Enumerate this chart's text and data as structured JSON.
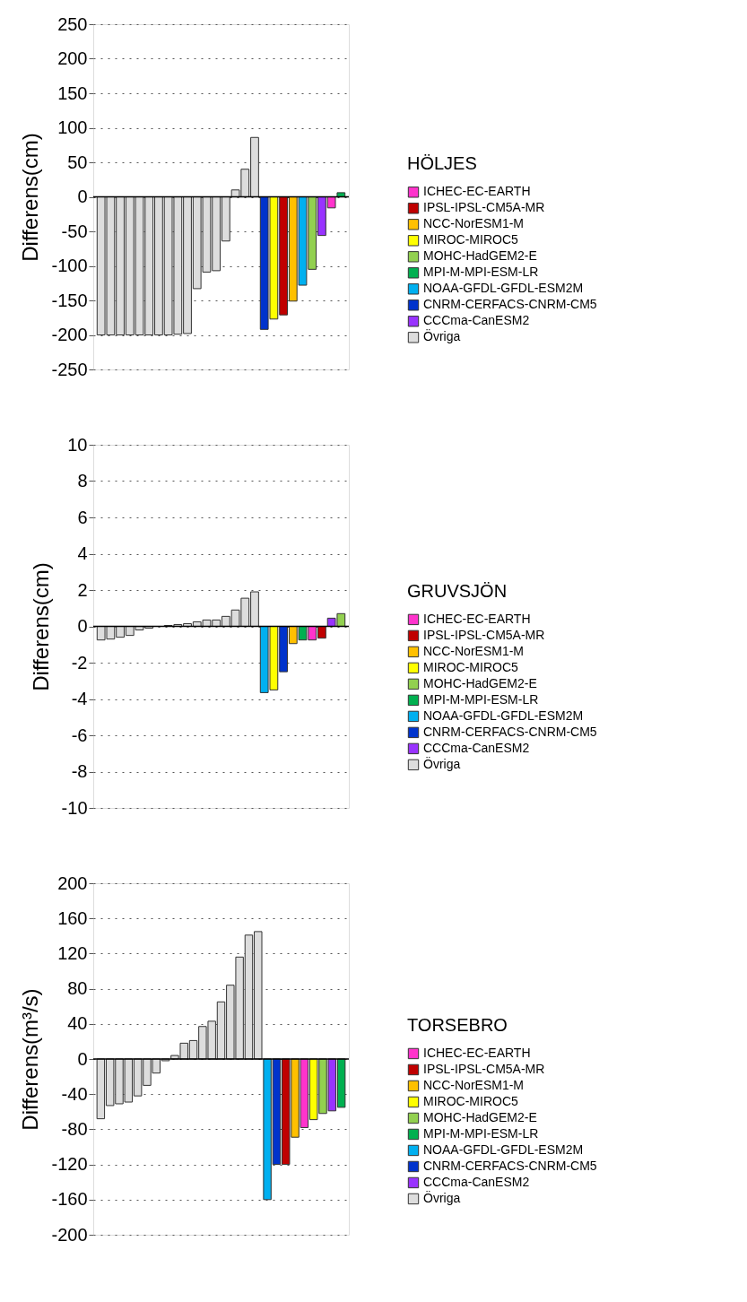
{
  "chart_data": [
    {
      "type": "bar",
      "ylabel": "Differens(cm)",
      "legend_title": "HÖLJES",
      "legend": "right",
      "grid": "y",
      "tick_labels": "y",
      "ylim": [
        -250,
        250
      ],
      "yticks": [
        -250,
        -200,
        -150,
        -100,
        -50,
        0,
        50,
        100,
        150,
        200,
        250
      ],
      "ref_lines": [
        {
          "axis": "y",
          "value": 0,
          "color": "#000000"
        }
      ],
      "categories": [
        null,
        null,
        null,
        null,
        null,
        null,
        null,
        null,
        null,
        null,
        null,
        null,
        null,
        null,
        null,
        null,
        null,
        null,
        null,
        null,
        null,
        null,
        null,
        null,
        null,
        null
      ],
      "series": [
        {
          "name": "ICHEC-EC-EARTH",
          "color": "#ff33cc",
          "values": [
            null,
            null,
            null,
            null,
            null,
            null,
            null,
            null,
            null,
            null,
            null,
            null,
            null,
            null,
            null,
            null,
            null,
            null,
            null,
            null,
            null,
            null,
            null,
            null,
            -16,
            null
          ]
        },
        {
          "name": "IPSL-IPSL-CM5A-MR",
          "color": "#c00000",
          "values": [
            null,
            null,
            null,
            null,
            null,
            null,
            null,
            null,
            null,
            null,
            null,
            null,
            null,
            null,
            null,
            null,
            null,
            null,
            null,
            -171,
            null,
            null,
            null,
            null,
            null,
            null
          ]
        },
        {
          "name": "NCC-NorESM1-M",
          "color": "#ffc000",
          "values": [
            null,
            null,
            null,
            null,
            null,
            null,
            null,
            null,
            null,
            null,
            null,
            null,
            null,
            null,
            null,
            null,
            null,
            null,
            null,
            null,
            -151,
            null,
            null,
            null,
            null,
            null
          ]
        },
        {
          "name": "MIROC-MIROC5",
          "color": "#ffff00",
          "values": [
            null,
            null,
            null,
            null,
            null,
            null,
            null,
            null,
            null,
            null,
            null,
            null,
            null,
            null,
            null,
            null,
            null,
            null,
            -177,
            null,
            null,
            null,
            null,
            null,
            null,
            null
          ]
        },
        {
          "name": "MOHC-HadGEM2-E",
          "color": "#92d050",
          "values": [
            null,
            null,
            null,
            null,
            null,
            null,
            null,
            null,
            null,
            null,
            null,
            null,
            null,
            null,
            null,
            null,
            null,
            null,
            null,
            null,
            null,
            null,
            -105,
            null,
            null,
            null
          ]
        },
        {
          "name": "MPI-M-MPI-ESM-LR",
          "color": "#00b050",
          "values": [
            null,
            null,
            null,
            null,
            null,
            null,
            null,
            null,
            null,
            null,
            null,
            null,
            null,
            null,
            null,
            null,
            null,
            null,
            null,
            null,
            null,
            null,
            null,
            null,
            null,
            6
          ]
        },
        {
          "name": "NOAA-GFDL-GFDL-ESM2M",
          "color": "#00b0f0",
          "values": [
            null,
            null,
            null,
            null,
            null,
            null,
            null,
            null,
            null,
            null,
            null,
            null,
            null,
            null,
            null,
            null,
            null,
            null,
            null,
            null,
            null,
            -128,
            null,
            null,
            null,
            null
          ]
        },
        {
          "name": "CNRM-CERFACS-CNRM-CM5",
          "color": "#0033cc",
          "values": [
            null,
            null,
            null,
            null,
            null,
            null,
            null,
            null,
            null,
            null,
            null,
            null,
            null,
            null,
            null,
            null,
            null,
            -192,
            null,
            null,
            null,
            null,
            null,
            null,
            null,
            null
          ]
        },
        {
          "name": "CCCma-CanESM2",
          "color": "#9933ff",
          "values": [
            null,
            null,
            null,
            null,
            null,
            null,
            null,
            null,
            null,
            null,
            null,
            null,
            null,
            null,
            null,
            null,
            null,
            null,
            null,
            null,
            null,
            null,
            null,
            -56,
            null,
            null
          ]
        },
        {
          "name": "Övriga",
          "color": "#dddddd",
          "values": [
            -200,
            -200,
            -200,
            -200,
            -200,
            -200,
            -200,
            -200,
            -199,
            -198,
            -133,
            -109,
            -107,
            -64,
            10,
            40,
            86,
            null,
            null,
            null,
            null,
            null,
            null,
            null,
            null,
            null
          ]
        }
      ]
    },
    {
      "type": "bar",
      "ylabel": "Differens(cm)",
      "legend_title": "GRUVSJÖN",
      "legend": "right",
      "grid": "y",
      "tick_labels": "y",
      "ylim": [
        -10,
        10
      ],
      "yticks": [
        -10,
        -8,
        -6,
        -4,
        -2,
        0,
        2,
        4,
        6,
        8,
        10
      ],
      "ref_lines": [
        {
          "axis": "y",
          "value": 0,
          "color": "#000000"
        }
      ],
      "categories": [
        null,
        null,
        null,
        null,
        null,
        null,
        null,
        null,
        null,
        null,
        null,
        null,
        null,
        null,
        null,
        null,
        null,
        null,
        null,
        null,
        null,
        null,
        null,
        null,
        null,
        null
      ],
      "series": [
        {
          "name": "ICHEC-EC-EARTH",
          "color": "#ff33cc",
          "values": [
            null,
            null,
            null,
            null,
            null,
            null,
            null,
            null,
            null,
            null,
            null,
            null,
            null,
            null,
            null,
            null,
            null,
            null,
            null,
            null,
            null,
            null,
            -0.75,
            null,
            null,
            null
          ]
        },
        {
          "name": "IPSL-IPSL-CM5A-MR",
          "color": "#c00000",
          "values": [
            null,
            null,
            null,
            null,
            null,
            null,
            null,
            null,
            null,
            null,
            null,
            null,
            null,
            null,
            null,
            null,
            null,
            null,
            null,
            null,
            null,
            null,
            null,
            -0.65,
            null,
            null
          ]
        },
        {
          "name": "NCC-NorESM1-M",
          "color": "#ffc000",
          "values": [
            null,
            null,
            null,
            null,
            null,
            null,
            null,
            null,
            null,
            null,
            null,
            null,
            null,
            null,
            null,
            null,
            null,
            null,
            null,
            null,
            -0.95,
            null,
            null,
            null,
            null,
            null
          ]
        },
        {
          "name": "MIROC-MIROC5",
          "color": "#ffff00",
          "values": [
            null,
            null,
            null,
            null,
            null,
            null,
            null,
            null,
            null,
            null,
            null,
            null,
            null,
            null,
            null,
            null,
            null,
            null,
            -3.5,
            null,
            null,
            null,
            null,
            null,
            null,
            null
          ]
        },
        {
          "name": "MOHC-HadGEM2-E",
          "color": "#92d050",
          "values": [
            null,
            null,
            null,
            null,
            null,
            null,
            null,
            null,
            null,
            null,
            null,
            null,
            null,
            null,
            null,
            null,
            null,
            null,
            null,
            null,
            null,
            null,
            null,
            null,
            null,
            0.7
          ]
        },
        {
          "name": "MPI-M-MPI-ESM-LR",
          "color": "#00b050",
          "values": [
            null,
            null,
            null,
            null,
            null,
            null,
            null,
            null,
            null,
            null,
            null,
            null,
            null,
            null,
            null,
            null,
            null,
            null,
            null,
            null,
            null,
            -0.75,
            null,
            null,
            null,
            null
          ]
        },
        {
          "name": "NOAA-GFDL-GFDL-ESM2M",
          "color": "#00b0f0",
          "values": [
            null,
            null,
            null,
            null,
            null,
            null,
            null,
            null,
            null,
            null,
            null,
            null,
            null,
            null,
            null,
            null,
            null,
            -3.65,
            null,
            null,
            null,
            null,
            null,
            null,
            null,
            null
          ]
        },
        {
          "name": "CNRM-CERFACS-CNRM-CM5",
          "color": "#0033cc",
          "values": [
            null,
            null,
            null,
            null,
            null,
            null,
            null,
            null,
            null,
            null,
            null,
            null,
            null,
            null,
            null,
            null,
            null,
            null,
            null,
            -2.5,
            null,
            null,
            null,
            null,
            null,
            null
          ]
        },
        {
          "name": "CCCma-CanESM2",
          "color": "#9933ff",
          "values": [
            null,
            null,
            null,
            null,
            null,
            null,
            null,
            null,
            null,
            null,
            null,
            null,
            null,
            null,
            null,
            null,
            null,
            null,
            null,
            null,
            null,
            null,
            null,
            null,
            0.45,
            null
          ]
        },
        {
          "name": "Övriga",
          "color": "#dddddd",
          "values": [
            -0.75,
            -0.7,
            -0.6,
            -0.5,
            -0.2,
            -0.1,
            0,
            0.05,
            0.1,
            0.15,
            0.25,
            0.35,
            0.35,
            0.55,
            0.9,
            1.55,
            1.9,
            null,
            null,
            null,
            null,
            null,
            null,
            null,
            null,
            null
          ]
        }
      ]
    },
    {
      "type": "bar",
      "ylabel": "Differens(m³/s)",
      "legend_title": "TORSEBRO",
      "legend": "right",
      "grid": "y",
      "tick_labels": "y",
      "ylim": [
        -200,
        200
      ],
      "yticks": [
        -200,
        -160,
        -120,
        -80,
        -40,
        0,
        40,
        80,
        120,
        160,
        200
      ],
      "ref_lines": [
        {
          "axis": "y",
          "value": 0,
          "color": "#000000"
        }
      ],
      "categories": [
        null,
        null,
        null,
        null,
        null,
        null,
        null,
        null,
        null,
        null,
        null,
        null,
        null,
        null,
        null,
        null,
        null,
        null,
        null,
        null,
        null,
        null,
        null,
        null,
        null,
        null,
        null
      ],
      "series": [
        {
          "name": "ICHEC-EC-EARTH",
          "color": "#ff33cc",
          "values": [
            null,
            null,
            null,
            null,
            null,
            null,
            null,
            null,
            null,
            null,
            null,
            null,
            null,
            null,
            null,
            null,
            null,
            null,
            null,
            null,
            null,
            null,
            -78,
            null,
            null,
            null,
            null
          ]
        },
        {
          "name": "IPSL-IPSL-CM5A-MR",
          "color": "#c00000",
          "values": [
            null,
            null,
            null,
            null,
            null,
            null,
            null,
            null,
            null,
            null,
            null,
            null,
            null,
            null,
            null,
            null,
            null,
            null,
            null,
            null,
            -120,
            null,
            null,
            null,
            null,
            null,
            null
          ]
        },
        {
          "name": "NCC-NorESM1-M",
          "color": "#ffc000",
          "values": [
            null,
            null,
            null,
            null,
            null,
            null,
            null,
            null,
            null,
            null,
            null,
            null,
            null,
            null,
            null,
            null,
            null,
            null,
            null,
            null,
            null,
            -89,
            null,
            null,
            null,
            null,
            null
          ]
        },
        {
          "name": "MIROC-MIROC5",
          "color": "#ffff00",
          "values": [
            null,
            null,
            null,
            null,
            null,
            null,
            null,
            null,
            null,
            null,
            null,
            null,
            null,
            null,
            null,
            null,
            null,
            null,
            null,
            null,
            null,
            null,
            null,
            -69,
            null,
            null,
            null
          ]
        },
        {
          "name": "MOHC-HadGEM2-E",
          "color": "#92d050",
          "values": [
            null,
            null,
            null,
            null,
            null,
            null,
            null,
            null,
            null,
            null,
            null,
            null,
            null,
            null,
            null,
            null,
            null,
            null,
            null,
            null,
            null,
            null,
            null,
            null,
            -62,
            null,
            null
          ]
        },
        {
          "name": "MPI-M-MPI-ESM-LR",
          "color": "#00b050",
          "values": [
            null,
            null,
            null,
            null,
            null,
            null,
            null,
            null,
            null,
            null,
            null,
            null,
            null,
            null,
            null,
            null,
            null,
            null,
            null,
            null,
            null,
            null,
            null,
            null,
            null,
            null,
            -55
          ]
        },
        {
          "name": "NOAA-GFDL-GFDL-ESM2M",
          "color": "#00b0f0",
          "values": [
            null,
            null,
            null,
            null,
            null,
            null,
            null,
            null,
            null,
            null,
            null,
            null,
            null,
            null,
            null,
            null,
            null,
            null,
            -160,
            null,
            null,
            null,
            null,
            null,
            null,
            null,
            null
          ]
        },
        {
          "name": "CNRM-CERFACS-CNRM-CM5",
          "color": "#0033cc",
          "values": [
            null,
            null,
            null,
            null,
            null,
            null,
            null,
            null,
            null,
            null,
            null,
            null,
            null,
            null,
            null,
            null,
            null,
            null,
            null,
            -120,
            null,
            null,
            null,
            null,
            null,
            null,
            null
          ]
        },
        {
          "name": "CCCma-CanESM2",
          "color": "#9933ff",
          "values": [
            null,
            null,
            null,
            null,
            null,
            null,
            null,
            null,
            null,
            null,
            null,
            null,
            null,
            null,
            null,
            null,
            null,
            null,
            null,
            null,
            null,
            null,
            null,
            null,
            null,
            -59,
            null
          ]
        },
        {
          "name": "Övriga",
          "color": "#dddddd",
          "values": [
            -68,
            -53,
            -51,
            -49,
            -42,
            -30,
            -16,
            -2,
            4,
            18,
            21,
            37,
            43,
            65,
            84,
            116,
            141,
            145,
            null,
            null,
            null,
            null,
            null,
            null,
            null,
            null,
            null
          ]
        }
      ]
    }
  ]
}
